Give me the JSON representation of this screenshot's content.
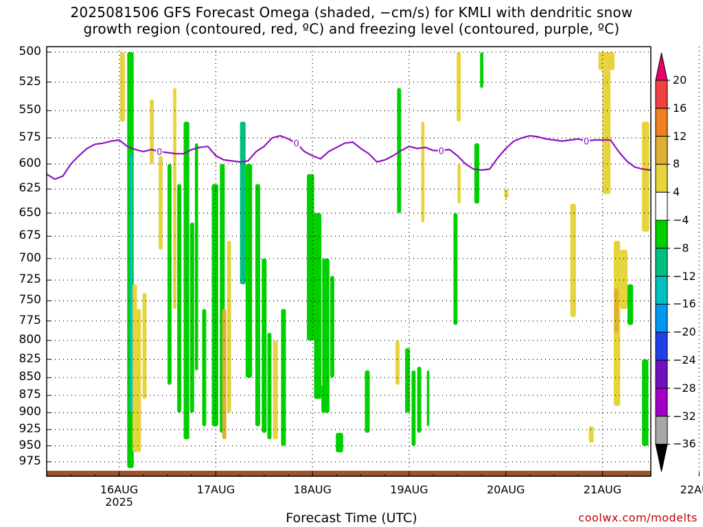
{
  "title": {
    "line1": "2025081506 GFS Forecast Omega (shaded, −cm/s) for KMLI with dendritic snow",
    "line2": "growth region (contoured, red, ºC) and freezing level (contoured, purple, ºC)"
  },
  "credit": "coolwx.com/modelts",
  "chart_data": {
    "type": "heatmap",
    "title": "2025081506 GFS Forecast Omega (shaded, −cm/s) for KMLI with dendritic snow growth region (contoured, red, ºC) and freezing level (contoured, purple, ºC)",
    "xlabel": "Forecast Time (UTC)",
    "ylabel": "",
    "x_ticks": [
      "16AUG",
      "17AUG",
      "18AUG",
      "19AUG",
      "20AUG",
      "21AUG",
      "22AUG"
    ],
    "x_year_label": "2025",
    "xlim_hours": [
      -18,
      132
    ],
    "y_ticks": [
      500,
      525,
      550,
      575,
      600,
      625,
      650,
      675,
      700,
      725,
      750,
      775,
      800,
      825,
      850,
      875,
      900,
      925,
      950,
      975
    ],
    "ylim": [
      500,
      985
    ],
    "grid": true,
    "colorbar": {
      "levels": [
        20,
        16,
        12,
        8,
        4,
        -4,
        -8,
        -12,
        -16,
        -20,
        -24,
        -28,
        -32,
        -36
      ],
      "colors": [
        "#e8006e",
        "#f04040",
        "#f08020",
        "#e0b030",
        "#e6d43c",
        "#ffffff",
        "#00d000",
        "#00c080",
        "#00c0c0",
        "#0098f0",
        "#2040e8",
        "#7010c0",
        "#a000c8",
        "#a8a8a8",
        "#000000"
      ]
    },
    "freezing_level": {
      "label": "0",
      "color": "#9010c0",
      "hours": [
        -18,
        -16,
        -14,
        -12,
        -10,
        -8,
        -6,
        -4,
        -2,
        0,
        2,
        4,
        6,
        8,
        10,
        12,
        14,
        16,
        18,
        20,
        22,
        24,
        26,
        28,
        30,
        32,
        34,
        36,
        38,
        40,
        42,
        44,
        46,
        48,
        50,
        52,
        54,
        56,
        58,
        60,
        62,
        64,
        66,
        68,
        70,
        72,
        74,
        76,
        78,
        80,
        82,
        84,
        86,
        88,
        90,
        92,
        94,
        96,
        98,
        100,
        102,
        104,
        106,
        108,
        110,
        112,
        114,
        116,
        118,
        120,
        122,
        124,
        126,
        128,
        130,
        132
      ],
      "pressure": [
        610,
        615,
        612,
        600,
        592,
        585,
        581,
        580,
        578,
        577,
        583,
        586,
        588,
        586,
        588,
        589,
        590,
        590,
        586,
        584,
        583,
        592,
        596,
        597,
        598,
        597,
        588,
        583,
        575,
        573,
        576,
        580,
        588,
        592,
        595,
        588,
        584,
        580,
        579,
        585,
        590,
        598,
        596,
        592,
        587,
        583,
        585,
        584,
        587,
        587,
        586,
        592,
        600,
        605,
        606,
        605,
        594,
        585,
        578,
        575,
        573,
        574,
        576,
        577,
        578,
        577,
        576,
        578,
        577,
        577,
        577,
        588,
        597,
        603,
        605,
        606
      ]
    },
    "omega_regions": [
      {
        "t0": 2.0,
        "t1": 3.6,
        "p0": 500,
        "p1": 985,
        "value": -8
      },
      {
        "t0": 2.6,
        "t1": 3.3,
        "p0": 590,
        "p1": 900,
        "value": -16
      },
      {
        "t0": 3.3,
        "t1": 4.4,
        "p0": 730,
        "p1": 960,
        "value": 6
      },
      {
        "t0": 0.2,
        "t1": 1.4,
        "p0": 500,
        "p1": 560,
        "value": 5
      },
      {
        "t0": 4.4,
        "t1": 5.4,
        "p0": 760,
        "p1": 960,
        "value": 5
      },
      {
        "t0": 5.8,
        "t1": 6.8,
        "p0": 740,
        "p1": 880,
        "value": 5
      },
      {
        "t0": 7.6,
        "t1": 8.6,
        "p0": 540,
        "p1": 600,
        "value": 5
      },
      {
        "t0": 9.8,
        "t1": 10.8,
        "p0": 585,
        "p1": 690,
        "value": 5
      },
      {
        "t0": 12.0,
        "t1": 13.0,
        "p0": 600,
        "p1": 860,
        "value": -8
      },
      {
        "t0": 13.4,
        "t1": 14.2,
        "p0": 530,
        "p1": 760,
        "value": 5
      },
      {
        "t0": 14.4,
        "t1": 15.4,
        "p0": 620,
        "p1": 900,
        "value": -8
      },
      {
        "t0": 16.0,
        "t1": 17.4,
        "p0": 560,
        "p1": 940,
        "value": -8
      },
      {
        "t0": 17.6,
        "t1": 18.6,
        "p0": 660,
        "p1": 900,
        "value": -8
      },
      {
        "t0": 18.8,
        "t1": 19.6,
        "p0": 580,
        "p1": 840,
        "value": -8
      },
      {
        "t0": 20.6,
        "t1": 21.6,
        "p0": 760,
        "p1": 920,
        "value": -8
      },
      {
        "t0": 23.0,
        "t1": 24.6,
        "p0": 620,
        "p1": 920,
        "value": -8
      },
      {
        "t0": 25.0,
        "t1": 26.2,
        "p0": 600,
        "p1": 930,
        "value": -8
      },
      {
        "t0": 25.6,
        "t1": 26.6,
        "p0": 760,
        "p1": 940,
        "value": 9
      },
      {
        "t0": 26.8,
        "t1": 27.8,
        "p0": 680,
        "p1": 900,
        "value": 5
      },
      {
        "t0": 30.0,
        "t1": 31.4,
        "p0": 560,
        "p1": 730,
        "value": -12
      },
      {
        "t0": 31.4,
        "t1": 33.0,
        "p0": 600,
        "p1": 850,
        "value": -8
      },
      {
        "t0": 33.8,
        "t1": 35.0,
        "p0": 620,
        "p1": 920,
        "value": -8
      },
      {
        "t0": 35.4,
        "t1": 36.6,
        "p0": 700,
        "p1": 930,
        "value": -8
      },
      {
        "t0": 36.8,
        "t1": 37.8,
        "p0": 790,
        "p1": 940,
        "value": -8
      },
      {
        "t0": 38.2,
        "t1": 39.4,
        "p0": 800,
        "p1": 940,
        "value": 5
      },
      {
        "t0": 40.2,
        "t1": 41.4,
        "p0": 760,
        "p1": 950,
        "value": -8
      },
      {
        "t0": 46.6,
        "t1": 48.4,
        "p0": 610,
        "p1": 800,
        "value": -8
      },
      {
        "t0": 48.4,
        "t1": 50.2,
        "p0": 650,
        "p1": 880,
        "value": -8
      },
      {
        "t0": 50.4,
        "t1": 52.2,
        "p0": 700,
        "p1": 900,
        "value": -8
      },
      {
        "t0": 52.4,
        "t1": 53.4,
        "p0": 720,
        "p1": 850,
        "value": -8
      },
      {
        "t0": 50.2,
        "t1": 51.0,
        "p0": 860,
        "p1": 900,
        "value": -8
      },
      {
        "t0": 53.8,
        "t1": 55.6,
        "p0": 930,
        "p1": 960,
        "value": -8
      },
      {
        "t0": 61.0,
        "t1": 62.2,
        "p0": 840,
        "p1": 930,
        "value": -8
      },
      {
        "t0": 69.0,
        "t1": 70.0,
        "p0": 530,
        "p1": 650,
        "value": -8
      },
      {
        "t0": 68.6,
        "t1": 69.6,
        "p0": 800,
        "p1": 860,
        "value": 5
      },
      {
        "t0": 71.0,
        "t1": 72.2,
        "p0": 810,
        "p1": 900,
        "value": -8
      },
      {
        "t0": 72.6,
        "t1": 73.6,
        "p0": 840,
        "p1": 950,
        "value": -8
      },
      {
        "t0": 74.0,
        "t1": 75.0,
        "p0": 835,
        "p1": 930,
        "value": -8
      },
      {
        "t0": 75.0,
        "t1": 75.8,
        "p0": 560,
        "p1": 660,
        "value": 5
      },
      {
        "t0": 76.4,
        "t1": 77.0,
        "p0": 840,
        "p1": 920,
        "value": -8
      },
      {
        "t0": 83.0,
        "t1": 84.0,
        "p0": 650,
        "p1": 780,
        "value": -8
      },
      {
        "t0": 83.8,
        "t1": 84.8,
        "p0": 500,
        "p1": 560,
        "value": 5
      },
      {
        "t0": 84.0,
        "t1": 84.8,
        "p0": 600,
        "p1": 640,
        "value": 5
      },
      {
        "t0": 88.2,
        "t1": 89.4,
        "p0": 580,
        "p1": 640,
        "value": -8
      },
      {
        "t0": 89.6,
        "t1": 90.4,
        "p0": 500,
        "p1": 530,
        "value": -8
      },
      {
        "t0": 95.6,
        "t1": 96.6,
        "p0": 625,
        "p1": 635,
        "value": 5
      },
      {
        "t0": 112.0,
        "t1": 113.4,
        "p0": 640,
        "p1": 770,
        "value": 5
      },
      {
        "t0": 116.6,
        "t1": 117.8,
        "p0": 920,
        "p1": 945,
        "value": 5
      },
      {
        "t0": 119.0,
        "t1": 123.0,
        "p0": 500,
        "p1": 515,
        "value": 5
      },
      {
        "t0": 120.0,
        "t1": 122.0,
        "p0": 515,
        "p1": 630,
        "value": 5
      },
      {
        "t0": 122.8,
        "t1": 124.4,
        "p0": 680,
        "p1": 890,
        "value": 5
      },
      {
        "t0": 122.9,
        "t1": 124.0,
        "p0": 735,
        "p1": 790,
        "value": 9
      },
      {
        "t0": 124.4,
        "t1": 126.2,
        "p0": 690,
        "p1": 760,
        "value": 5
      },
      {
        "t0": 126.2,
        "t1": 127.6,
        "p0": 730,
        "p1": 780,
        "value": -8
      },
      {
        "t0": 129.8,
        "t1": 131.6,
        "p0": 560,
        "p1": 670,
        "value": 5
      },
      {
        "t0": 129.8,
        "t1": 131.4,
        "p0": 825,
        "p1": 950,
        "value": -8
      }
    ]
  }
}
